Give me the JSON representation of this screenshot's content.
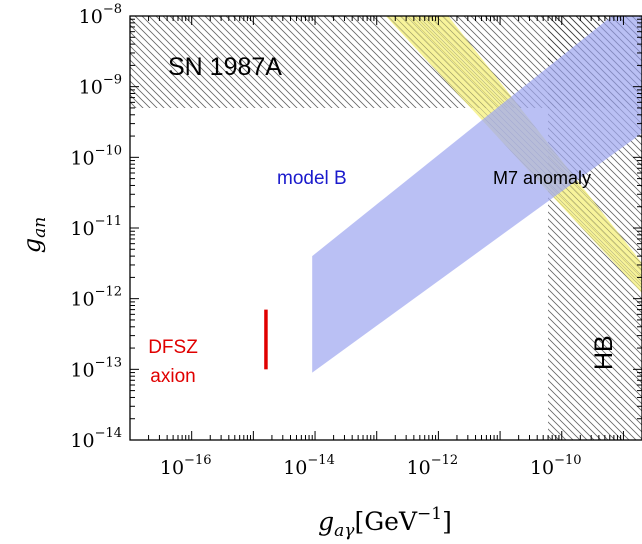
{
  "chart_data": {
    "type": "area",
    "xlabel": "g_{aγ} [GeV^{-1}]",
    "ylabel": "g_{an}",
    "xscale": "log",
    "yscale": "log",
    "xlim": [
      1e-17,
      2e-09
    ],
    "ylim": [
      1e-14,
      1e-08
    ],
    "xticks": [
      {
        "base": "10",
        "exp": "−16",
        "value": 1e-16
      },
      {
        "base": "10",
        "exp": "−14",
        "value": 1e-14
      },
      {
        "base": "10",
        "exp": "−12",
        "value": 1e-12
      },
      {
        "base": "10",
        "exp": "−10",
        "value": 1e-10
      }
    ],
    "yticks": [
      {
        "base": "10",
        "exp": "−8",
        "value": 1e-08
      },
      {
        "base": "10",
        "exp": "−9",
        "value": 1e-09
      },
      {
        "base": "10",
        "exp": "−10",
        "value": 1e-10
      },
      {
        "base": "10",
        "exp": "−11",
        "value": 1e-11
      },
      {
        "base": "10",
        "exp": "−12",
        "value": 1e-12
      },
      {
        "base": "10",
        "exp": "−13",
        "value": 1e-13
      },
      {
        "base": "10",
        "exp": "−14",
        "value": 1e-14
      }
    ],
    "regions": [
      {
        "label": "SN 1987A",
        "kind": "excluded-hatched",
        "color": "#333333",
        "bounds": {
          "x": [
            1e-17,
            2e-09
          ],
          "y": [
            7e-10,
            1e-08
          ]
        }
      },
      {
        "label": "HB",
        "kind": "excluded-hatched",
        "color": "#333333",
        "bounds": {
          "x": [
            7e-11,
            2e-09
          ],
          "y": [
            1e-14,
            1e-08
          ]
        }
      },
      {
        "label": "model B",
        "kind": "band",
        "color": "#a0a8f0",
        "vertices": [
          [
            9e-15,
            4e-12
          ],
          [
            9e-15,
            9e-14
          ],
          [
            2e-09,
            2.2e-10
          ],
          [
            2e-09,
            1e-08
          ],
          [
            6.5e-10,
            1e-08
          ]
        ]
      },
      {
        "label": "M7 anomaly",
        "kind": "band",
        "color": "#f5f07a",
        "vertices": [
          [
            1.4e-13,
            1e-08
          ],
          [
            1.45e-12,
            1e-08
          ],
          [
            2e-09,
            3.2e-12
          ],
          [
            2e-09,
            1.2e-12
          ]
        ]
      },
      {
        "label": "DFSZ axion",
        "kind": "interval",
        "color": "#e00000",
        "x": 1.6e-15,
        "y": [
          1e-13,
          7e-13
        ]
      }
    ]
  },
  "labels": {
    "sn": "SN 1987A",
    "model_b": "model B",
    "m7": "M7 anomaly",
    "hb": "HB",
    "dfsz_line1": "DFSZ",
    "dfsz_line2": "axion"
  },
  "axis_titles": {
    "y_main": "g",
    "y_sub": "an",
    "x_main": "g",
    "x_sub": "aγ",
    "x_unit": "[GeV",
    "x_unit_exp": "−1",
    "x_unit_close": "]"
  },
  "colors": {
    "model_b": "#a0a8f0",
    "m7": "#f5f07a",
    "dfsz": "#e00000",
    "hatch": "#333333",
    "model_b_text": "#1a1acc"
  }
}
